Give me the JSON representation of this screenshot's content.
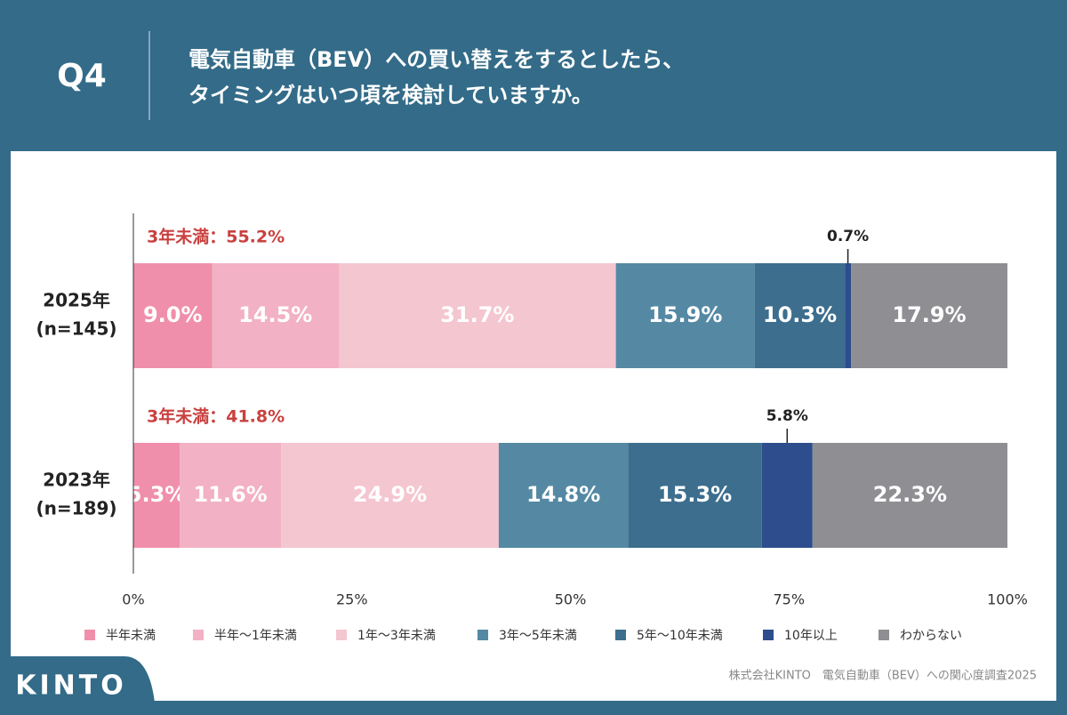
{
  "header": {
    "badge": "Q4",
    "question": [
      "電気自動車（BEV）への買い替えをするとしたら、",
      "タイミングはいつ頃を検討していますか。"
    ]
  },
  "chart_data": {
    "type": "stacked-bar-horizontal",
    "categories": [
      "2025年",
      "2023年"
    ],
    "sample_sizes": [
      "(n=145)",
      "(n=189)"
    ],
    "annotations": [
      "3年未満：55.2%",
      "3年未満：41.8%"
    ],
    "series": [
      {
        "name": "半年未満",
        "color": "#f08fab",
        "values": [
          9.0,
          5.3
        ],
        "value_labels": [
          "9.0%",
          "5.3%"
        ]
      },
      {
        "name": "半年～1年未満",
        "color": "#f2b1c4",
        "values": [
          14.5,
          11.6
        ],
        "value_labels": [
          "14.5%",
          "11.6%"
        ]
      },
      {
        "name": "1年～3年未満",
        "color": "#f4c6d0",
        "values": [
          31.7,
          24.9
        ],
        "value_labels": [
          "31.7%",
          "24.9%"
        ]
      },
      {
        "name": "3年～5年未満",
        "color": "#5589a3",
        "values": [
          15.9,
          14.8
        ],
        "value_labels": [
          "15.9%",
          "14.8%"
        ]
      },
      {
        "name": "5年～10年未満",
        "color": "#3d6e8e",
        "values": [
          10.3,
          15.3
        ],
        "value_labels": [
          "10.3%",
          "15.3%"
        ]
      },
      {
        "name": "10年以上",
        "color": "#2d4d8c",
        "values": [
          0.7,
          5.8
        ],
        "value_labels": [
          "0.7%",
          "5.8%"
        ]
      },
      {
        "name": "わからない",
        "color": "#8f8e92",
        "values": [
          17.9,
          22.3
        ],
        "value_labels": [
          "17.9%",
          "22.3%"
        ]
      }
    ],
    "xlim": [
      0,
      100
    ],
    "xticks": [
      {
        "value": 0,
        "label": "0%"
      },
      {
        "value": 25,
        "label": "25%"
      },
      {
        "value": 50,
        "label": "50%"
      },
      {
        "value": 75,
        "label": "75%"
      },
      {
        "value": 100,
        "label": "100%"
      }
    ]
  },
  "footer": {
    "source": "株式会社KINTO　電気自動車（BEV）への関心度調査2025",
    "logo": "KINTO"
  }
}
